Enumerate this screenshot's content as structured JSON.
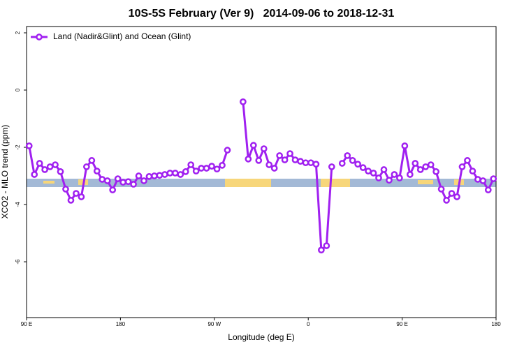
{
  "chart_data": {
    "type": "line",
    "title": "10S-5S February (Ver 9)   2014-09-06 to 2018-12-31",
    "xlabel": "Longitude (deg E)",
    "ylabel": "XCO2 - MLO trend (ppm)",
    "xlim": [
      90,
      540
    ],
    "ylim": [
      -7.95,
      2.22
    ],
    "xticks": [
      {
        "value": 90,
        "label": "90 E"
      },
      {
        "value": 180,
        "label": "180"
      },
      {
        "value": 270,
        "label": "90 W"
      },
      {
        "value": 360,
        "label": "0"
      },
      {
        "value": 450,
        "label": "90 E"
      },
      {
        "value": 540,
        "label": "180"
      }
    ],
    "yticks": [
      2,
      0,
      -2,
      -4,
      -6
    ],
    "legend": "top-left",
    "x": [
      92.5,
      97.5,
      102.5,
      107.5,
      112.5,
      117.5,
      122.5,
      127.5,
      132.5,
      137.5,
      142.5,
      147.5,
      152.5,
      157.5,
      162.5,
      167.5,
      172.5,
      177.5,
      182.5,
      187.5,
      192.5,
      197.5,
      202.5,
      207.5,
      212.5,
      217.5,
      222.5,
      227.5,
      232.5,
      237.5,
      242.5,
      247.5,
      252.5,
      257.5,
      262.5,
      267.5,
      272.5,
      277.5,
      282.5,
      287.5,
      292.5,
      297.5,
      302.5,
      307.5,
      312.5,
      317.5,
      322.5,
      327.5,
      332.5,
      337.5,
      342.5,
      347.5,
      352.5,
      357.5,
      362.5,
      367.5,
      372.5,
      377.5,
      382.5,
      387.5,
      392.5,
      397.5,
      402.5,
      407.5,
      412.5,
      417.5,
      422.5,
      427.5,
      432.5,
      437.5,
      442.5,
      447.5,
      452.5,
      457.5,
      462.5,
      467.5,
      472.5,
      477.5,
      482.5,
      487.5,
      492.5,
      497.5,
      502.5,
      507.5,
      512.5,
      517.5,
      522.5,
      527.5,
      532.5,
      537.5
    ],
    "series": [
      {
        "name": "Land (Nadir&Glint) and Ocean (Glint)",
        "color": "#a020f0",
        "values": [
          -1.95,
          -2.95,
          -2.56,
          -2.78,
          -2.68,
          -2.61,
          -2.85,
          -3.46,
          -3.85,
          -3.61,
          -3.73,
          -2.68,
          -2.46,
          -2.83,
          -3.12,
          -3.17,
          -3.49,
          -3.1,
          -3.22,
          -3.2,
          -3.29,
          -3.0,
          -3.17,
          -3.02,
          -3.0,
          -2.98,
          -2.95,
          -2.9,
          -2.9,
          -2.95,
          -2.85,
          -2.61,
          -2.83,
          -2.73,
          -2.73,
          -2.66,
          -2.76,
          -2.63,
          -2.1,
          null,
          null,
          -0.41,
          -2.41,
          -1.93,
          -2.46,
          -2.05,
          -2.61,
          -2.73,
          -2.29,
          -2.44,
          -2.22,
          -2.44,
          -2.49,
          -2.54,
          -2.54,
          -2.59,
          -5.59,
          -5.44,
          -2.68,
          null,
          -2.56,
          -2.29,
          -2.46,
          -2.59,
          -2.71,
          -2.83,
          -2.9,
          -3.07,
          -2.78,
          -3.15,
          -2.95,
          -3.07,
          -1.95,
          -2.95,
          -2.56,
          -2.78,
          -2.68,
          -2.61,
          -2.85,
          -3.46,
          -3.85,
          -3.61,
          -3.73,
          -2.68,
          -2.46,
          -2.83,
          -3.12,
          -3.17,
          -3.49,
          -3.1
        ]
      }
    ]
  }
}
